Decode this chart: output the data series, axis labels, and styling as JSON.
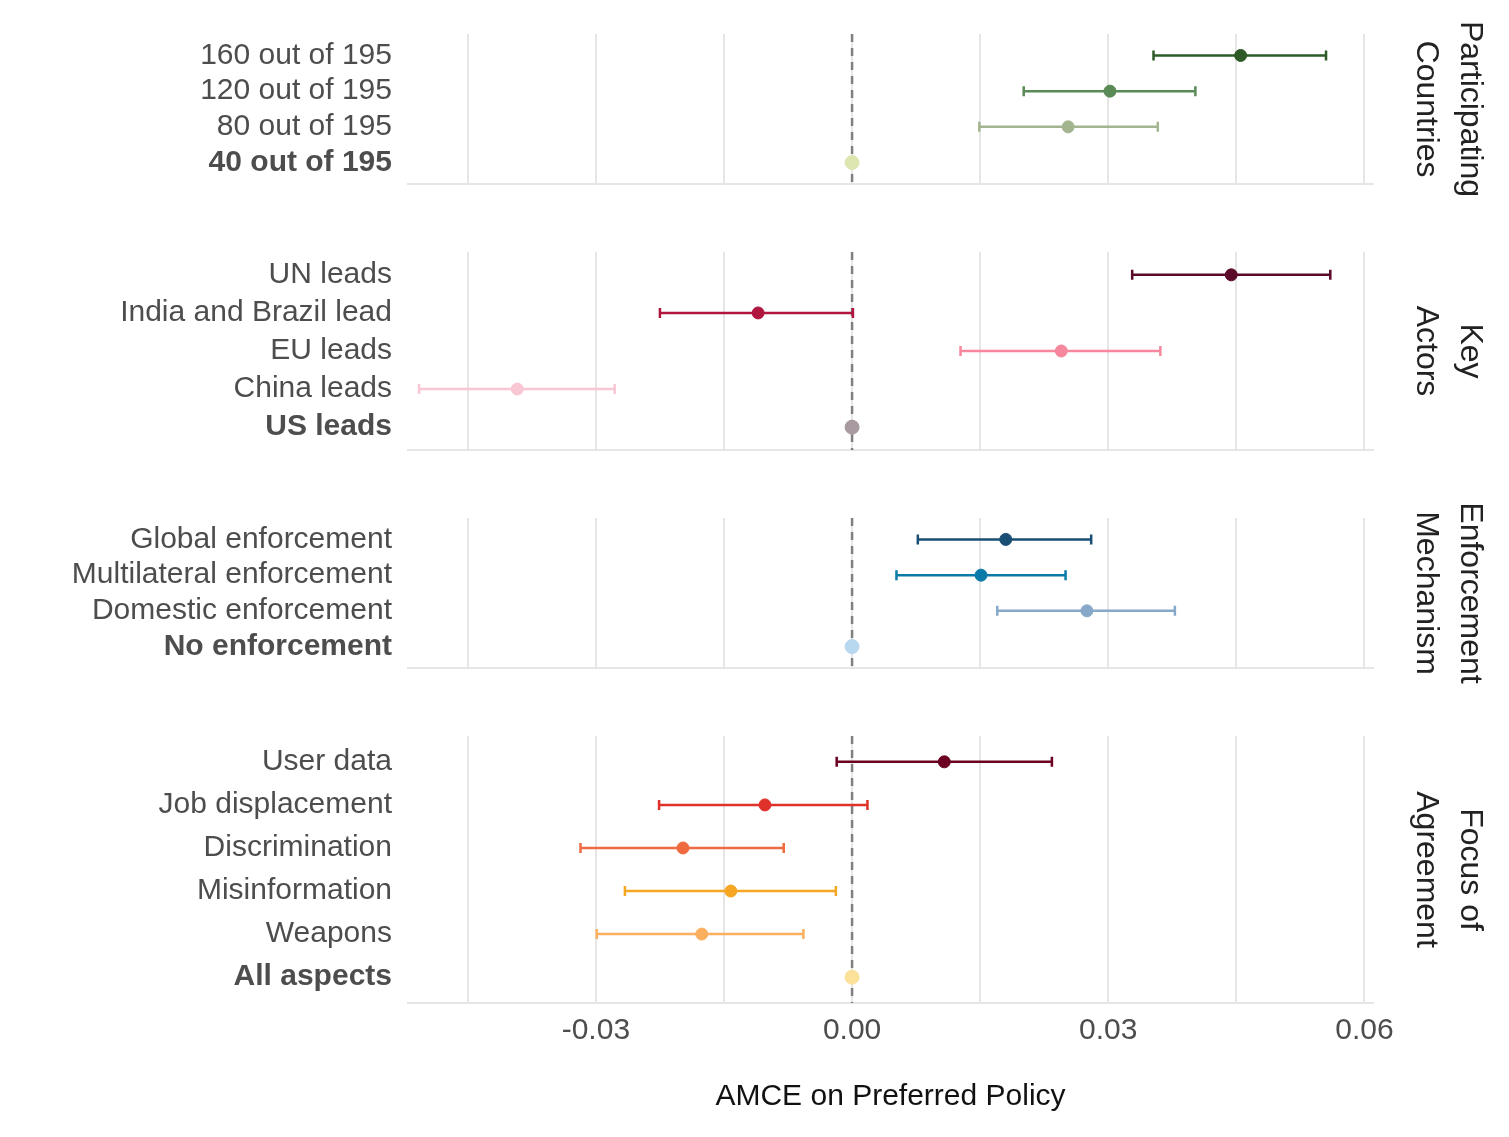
{
  "chart_data": [
    {
      "type": "scatter",
      "orientation": "horizontal",
      "y2label": "Participating Countries",
      "categories": [
        "160 out of 195",
        "120 out of 195",
        "80 out of 195",
        "40 out of 195"
      ],
      "values": [
        0.0455,
        0.0302,
        0.0253,
        0
      ],
      "errors": [
        [
          0.0353,
          0.0555
        ],
        [
          0.0201,
          0.0402
        ],
        [
          0.0149,
          0.0358
        ],
        null
      ],
      "colors": [
        "#2d5a27",
        "#5a8a55",
        "#a3b58e",
        "#dde6b0"
      ],
      "xlim": [
        -0.052,
        0.061
      ],
      "xticks": [
        {
          "value": -0.045,
          "label": null
        },
        -0.03,
        {
          "value": -0.015,
          "label": null
        },
        0,
        {
          "value": 0.015,
          "label": null
        },
        0.03,
        {
          "value": 0.045,
          "label": null
        },
        0.06
      ],
      "tick_labels": "y",
      "grid": "x",
      "marker": "circle",
      "ref_lines": [
        {
          "axis": "x",
          "value": 0,
          "line_style": "dashed",
          "color": "#808080"
        }
      ]
    },
    {
      "type": "scatter",
      "orientation": "horizontal",
      "y2label": "Key Actors",
      "categories": [
        "UN leads",
        "India and Brazil lead",
        "EU leads",
        "China leads",
        "US leads"
      ],
      "values": [
        0.0444,
        -0.011,
        0.0245,
        -0.0392,
        0
      ],
      "errors": [
        [
          0.0328,
          0.056
        ],
        [
          -0.0225,
          0.0001
        ],
        [
          0.0127,
          0.0361
        ],
        [
          -0.0507,
          -0.0278
        ],
        null
      ],
      "colors": [
        "#5c0a2a",
        "#b0153f",
        "#f7879c",
        "#f9c6d3",
        "#a89aa0"
      ],
      "xlim": [
        -0.052,
        0.061
      ],
      "xticks": [
        {
          "value": -0.045,
          "label": null
        },
        -0.03,
        {
          "value": -0.015,
          "label": null
        },
        0,
        {
          "value": 0.015,
          "label": null
        },
        0.03,
        {
          "value": 0.045,
          "label": null
        },
        0.06
      ],
      "tick_labels": "y",
      "grid": "x",
      "marker": "circle",
      "ref_lines": [
        {
          "axis": "x",
          "value": 0,
          "line_style": "dashed",
          "color": "#808080"
        }
      ]
    },
    {
      "type": "scatter",
      "orientation": "horizontal",
      "y2label": "Enforcement Mechanism",
      "categories": [
        "Global enforcement",
        "Multilateral enforcement",
        "Domestic enforcement",
        "No enforcement"
      ],
      "values": [
        0.018,
        0.0151,
        0.0275,
        0
      ],
      "errors": [
        [
          0.0077,
          0.028
        ],
        [
          0.0052,
          0.025
        ],
        [
          0.017,
          0.0378
        ],
        null
      ],
      "colors": [
        "#1a4f75",
        "#0a7aa8",
        "#87a8c8",
        "#b8d8f0"
      ],
      "xlim": [
        -0.052,
        0.061
      ],
      "xticks": [
        {
          "value": -0.045,
          "label": null
        },
        -0.03,
        {
          "value": -0.015,
          "label": null
        },
        0,
        {
          "value": 0.015,
          "label": null
        },
        0.03,
        {
          "value": 0.045,
          "label": null
        },
        0.06
      ],
      "tick_labels": "y",
      "grid": "x",
      "marker": "circle",
      "ref_lines": [
        {
          "axis": "x",
          "value": 0,
          "line_style": "dashed",
          "color": "#808080"
        }
      ]
    },
    {
      "type": "scatter",
      "orientation": "horizontal",
      "y2label": "Focus of Agreement",
      "xlabel": "AMCE on Preferred Policy",
      "categories": [
        "User data",
        "Job displacement",
        "Discrimination",
        "Misinformation",
        "Weapons",
        "All aspects"
      ],
      "values": [
        0.0108,
        -0.0102,
        -0.0198,
        -0.0142,
        -0.0176,
        0
      ],
      "errors": [
        [
          -0.0018,
          0.0234
        ],
        [
          -0.0226,
          0.0018
        ],
        [
          -0.0318,
          -0.008
        ],
        [
          -0.0266,
          -0.0019
        ],
        [
          -0.0299,
          -0.0057
        ],
        null
      ],
      "colors": [
        "#6b0020",
        "#e0302a",
        "#f06a40",
        "#f5a623",
        "#fbb060",
        "#fce19a"
      ],
      "xlim": [
        -0.052,
        0.061
      ],
      "xticks": [
        {
          "value": -0.045,
          "label": null
        },
        -0.03,
        {
          "value": -0.015,
          "label": null
        },
        {
          "value": 0,
          "label": "0.00"
        },
        {
          "value": 0.015,
          "label": null
        },
        0.03,
        {
          "value": 0.045,
          "label": null
        },
        0.06
      ],
      "grid": "x",
      "marker": "circle",
      "ref_lines": [
        {
          "axis": "x",
          "value": 0,
          "line_style": "dashed",
          "color": "#808080"
        }
      ]
    }
  ]
}
